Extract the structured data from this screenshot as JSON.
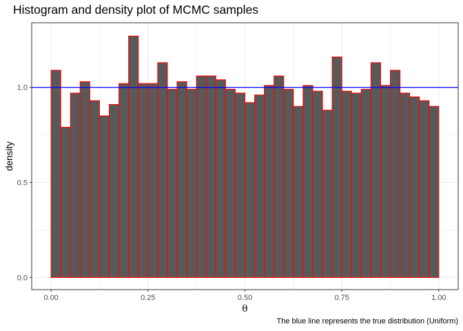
{
  "chart_data": {
    "type": "bar",
    "title": "Histogram and density plot of MCMC samples",
    "caption": "The blue line represents the true distribution (Uniform)",
    "xlabel": "θ",
    "ylabel": "density",
    "xlim": [
      -0.05,
      1.05
    ],
    "ylim": [
      -0.064,
      1.34
    ],
    "xticks": [
      0.0,
      0.25,
      0.5,
      0.75,
      1.0
    ],
    "xtick_labels": [
      "0.00",
      "0.25",
      "0.50",
      "0.75",
      "1.00"
    ],
    "yticks": [
      0.0,
      0.5,
      1.0
    ],
    "ytick_labels": [
      "0.0",
      "0.5",
      "1.0"
    ],
    "grid": true,
    "bin_width": 0.025,
    "bin_starts": [
      0.0,
      0.025,
      0.05,
      0.075,
      0.1,
      0.125,
      0.15,
      0.175,
      0.2,
      0.225,
      0.25,
      0.275,
      0.3,
      0.325,
      0.35,
      0.375,
      0.4,
      0.425,
      0.45,
      0.475,
      0.5,
      0.525,
      0.55,
      0.575,
      0.6,
      0.625,
      0.65,
      0.675,
      0.7,
      0.725,
      0.75,
      0.775,
      0.8,
      0.825,
      0.85,
      0.875,
      0.9,
      0.925,
      0.95,
      0.975
    ],
    "values": [
      1.09,
      0.79,
      0.97,
      1.03,
      0.93,
      0.85,
      0.91,
      1.02,
      1.27,
      1.02,
      1.02,
      1.13,
      0.99,
      1.03,
      0.99,
      1.06,
      1.06,
      1.04,
      0.99,
      0.97,
      0.92,
      0.96,
      1.01,
      1.06,
      0.99,
      0.9,
      1.01,
      0.98,
      0.88,
      1.16,
      0.98,
      0.97,
      0.99,
      1.13,
      1.01,
      1.09,
      0.97,
      0.95,
      0.93,
      0.9
    ],
    "reference_line": {
      "y": 1.0,
      "color": "#0000ff",
      "orientation": "horizontal"
    },
    "colors": {
      "bar_fill": "#595959",
      "bar_border": "#ff0000",
      "panel_border": "#333333",
      "grid": "#ebebeb"
    }
  }
}
